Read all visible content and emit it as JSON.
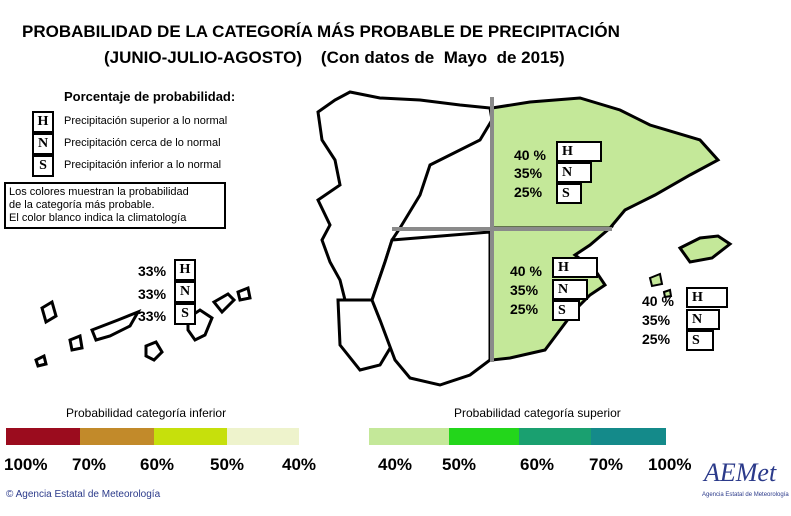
{
  "title": {
    "line1": "PROBABILIDAD DE LA CATEGORÍA MÁS PROBABLE DE PRECIPITACIÓN",
    "line2": "(JUNIO-JULIO-AGOSTO)    (Con datos de  Mayo  de 2015)"
  },
  "legend": {
    "heading": "Porcentaje de probabilidad:",
    "items": [
      {
        "letter": "H",
        "text": "Precipitación superior a lo normal"
      },
      {
        "letter": "N",
        "text": "Precipitación cerca de lo normal"
      },
      {
        "letter": "S",
        "text": "Precipitación inferior a lo normal"
      }
    ],
    "note": [
      "Los colores muestran la probabilidad",
      "de la categoría más probable.",
      "El color blanco indica la climatología"
    ]
  },
  "regions": {
    "canarias": {
      "H": "33%",
      "N": "33%",
      "S": "33%"
    },
    "northeast": {
      "H": "40 %",
      "N": "35%",
      "S": "25%"
    },
    "southeast": {
      "H": "40 %",
      "N": "35%",
      "S": "25%"
    },
    "baleares": {
      "H": "40 %",
      "N": "35%",
      "S": "25%"
    }
  },
  "letters": {
    "H": "H",
    "N": "N",
    "S": "S"
  },
  "colors": {
    "inferior": [
      "#9b0c1e",
      "#c28a2a",
      "#c6e00c",
      "#eef3cc"
    ],
    "superior": [
      "#c4e899",
      "#23d61b",
      "#1aa070",
      "#148a8a"
    ],
    "highlight_region": "#c4e899",
    "grid_line": "#8a8a8a"
  },
  "scale": {
    "inferior_label": "Probabilidad categoría inferior",
    "superior_label": "Probabilidad categoría superior",
    "inferior_ticks": [
      "100%",
      "70%",
      "60%",
      "50%",
      "40%"
    ],
    "superior_ticks": [
      "40%",
      "50%",
      "60%",
      "70%",
      "100%"
    ]
  },
  "footer": {
    "copyright": "© Agencia Estatal de Meteorología",
    "logo_text": "AEMet",
    "logo_sub": "Agencia Estatal de Meteorología"
  }
}
